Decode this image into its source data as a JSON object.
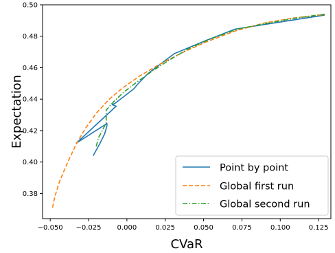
{
  "chart_data": {
    "type": "line",
    "xlabel": "CVaR",
    "ylabel": "Expectation",
    "xlim": [
      -0.055,
      0.133
    ],
    "ylim": [
      0.364,
      0.5
    ],
    "xticks": [
      -0.05,
      -0.025,
      0.0,
      0.025,
      0.05,
      0.075,
      0.1,
      0.125
    ],
    "xtick_labels": [
      "−0.050",
      "−0.025",
      "0.000",
      "0.025",
      "0.050",
      "0.075",
      "0.100",
      "0.125"
    ],
    "yticks": [
      0.38,
      0.4,
      0.42,
      0.44,
      0.46,
      0.48,
      0.5
    ],
    "ytick_labels": [
      "0.38",
      "0.40",
      "0.42",
      "0.44",
      "0.46",
      "0.48",
      "0.50"
    ],
    "legend_position": "lower right",
    "grid": false,
    "series": [
      {
        "name": "Point by point",
        "color": "#1f77b4",
        "style": "solid",
        "x": [
          0.129,
          0.0705,
          0.052,
          0.031,
          0.014,
          0.007,
          0.0045,
          -0.0075,
          -0.0095,
          -0.007,
          -0.033,
          -0.013,
          -0.013,
          -0.0145,
          -0.0175,
          -0.022
        ],
        "y": [
          0.4935,
          0.4845,
          0.4775,
          0.469,
          0.4565,
          0.4495,
          0.4465,
          0.4375,
          0.4365,
          0.4355,
          0.412,
          0.4245,
          0.423,
          0.418,
          0.412,
          0.404
        ]
      },
      {
        "name": "Global first run",
        "color": "#ff7f0e",
        "style": "dashed",
        "x": [
          -0.0485,
          -0.047,
          -0.044,
          -0.039,
          -0.033,
          -0.027,
          -0.02,
          -0.012,
          -0.003,
          0.008,
          0.021,
          0.036,
          0.052,
          0.071,
          0.09,
          0.108,
          0.125,
          0.129
        ],
        "y": [
          0.371,
          0.378,
          0.3875,
          0.399,
          0.4115,
          0.4215,
          0.431,
          0.4395,
          0.447,
          0.4545,
          0.462,
          0.4695,
          0.4765,
          0.4835,
          0.4885,
          0.4915,
          0.4935,
          0.4935
        ]
      },
      {
        "name": "Global second run",
        "color": "#2ca02c",
        "style": "dashdot",
        "x": [
          0.129,
          0.11,
          0.09,
          0.072,
          0.055,
          0.04,
          0.027,
          0.016,
          0.006,
          -0.002,
          -0.0085,
          -0.0135,
          -0.0135,
          -0.016,
          -0.0185,
          -0.02
        ],
        "y": [
          0.494,
          0.4915,
          0.488,
          0.4845,
          0.4785,
          0.472,
          0.4645,
          0.4575,
          0.4505,
          0.4445,
          0.4385,
          0.433,
          0.425,
          0.42,
          0.4155,
          0.41
        ]
      }
    ]
  }
}
